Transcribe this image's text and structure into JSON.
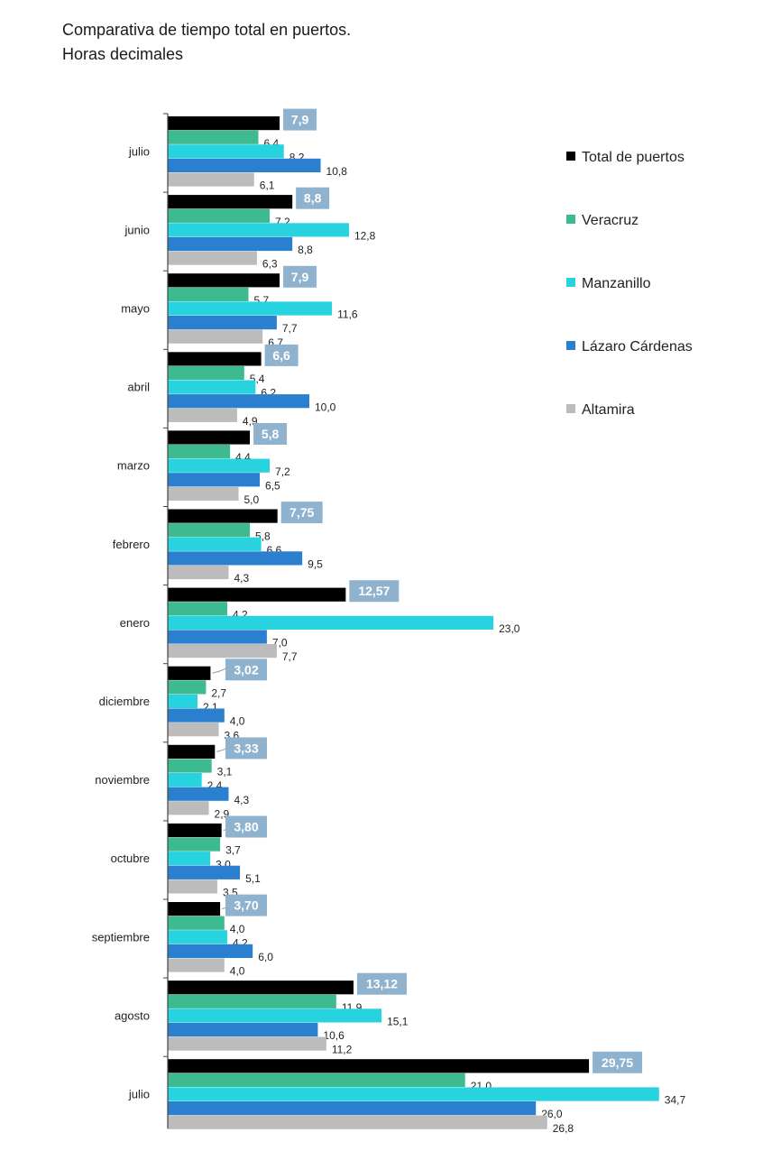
{
  "title_line1": "Comparativa de tiempo total en puertos.",
  "title_line2": "Horas decimales",
  "chart_data": {
    "type": "bar",
    "orientation": "horizontal",
    "title": "Comparativa de tiempo total en puertos. Horas decimales",
    "categories": [
      "julio",
      "junio",
      "mayo",
      "abril",
      "marzo",
      "febrero",
      "enero",
      "diciembre",
      "noviembre",
      "octubre",
      "septiembre",
      "agosto",
      "julio"
    ],
    "series": [
      {
        "name": "Total de puertos",
        "color": "#000000",
        "values": [
          7.9,
          8.8,
          7.9,
          6.6,
          5.8,
          7.75,
          12.57,
          3.02,
          3.33,
          3.8,
          3.7,
          13.12,
          29.75
        ],
        "labels": [
          "7,9",
          "8,8",
          "7,9",
          "6,6",
          "5,8",
          "7,75",
          "12,57",
          "3,02",
          "3,33",
          "3,80",
          "3,70",
          "13,12",
          "29,75"
        ]
      },
      {
        "name": "Veracruz",
        "color": "#3dba8f",
        "values": [
          6.4,
          7.2,
          5.7,
          5.4,
          4.4,
          5.8,
          4.2,
          2.7,
          3.1,
          3.7,
          4.0,
          11.9,
          21.0
        ],
        "labels": [
          "6,4",
          "7,2",
          "5,7",
          "5,4",
          "4,4",
          "5,8",
          "4,2",
          "2,7",
          "3,1",
          "3,7",
          "4,0",
          "11,9",
          "21,0"
        ]
      },
      {
        "name": "Manzanillo",
        "color": "#26d3de",
        "values": [
          8.2,
          12.8,
          11.6,
          6.2,
          7.2,
          6.6,
          23.0,
          2.1,
          2.4,
          3.0,
          4.2,
          15.1,
          34.7
        ],
        "labels": [
          "8,2",
          "12,8",
          "11,6",
          "6,2",
          "7,2",
          "6,6",
          "23,0",
          "2,1",
          "2,4",
          "3,0",
          "4,2",
          "15,1",
          "34,7"
        ]
      },
      {
        "name": "Lázaro Cárdenas",
        "color": "#2a7fcf",
        "values": [
          10.8,
          8.8,
          7.7,
          10.0,
          6.5,
          9.5,
          7.0,
          4.0,
          4.3,
          5.1,
          6.0,
          10.6,
          26.0
        ],
        "labels": [
          "10,8",
          "8,8",
          "7,7",
          "10,0",
          "6,5",
          "9,5",
          "7,0",
          "4,0",
          "4,3",
          "5,1",
          "6,0",
          "10,6",
          "26,0"
        ]
      },
      {
        "name": "Altamira",
        "color": "#bcbcbc",
        "values": [
          6.1,
          6.3,
          6.7,
          4.9,
          5.0,
          4.3,
          7.7,
          3.6,
          2.9,
          3.5,
          4.0,
          11.2,
          26.8
        ],
        "labels": [
          "6,1",
          "6,3",
          "6,7",
          "4,9",
          "5,0",
          "4,3",
          "7,7",
          "3,6",
          "2,9",
          "3,5",
          "4,0",
          "11,2",
          "26,8"
        ]
      }
    ],
    "total_label_color": "#8fb3cf",
    "xlim": [
      0,
      35
    ],
    "xlabel": "",
    "ylabel": "",
    "grid": false,
    "legend": "right"
  }
}
